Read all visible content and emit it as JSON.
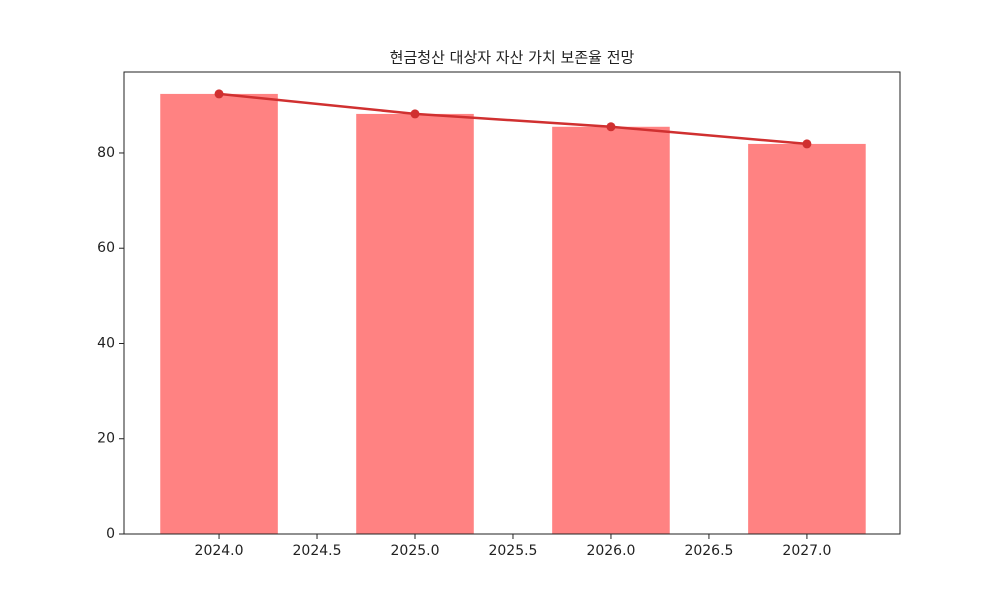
{
  "chart_data": {
    "type": "bar",
    "title": "현금청산 대상자 자산 가치 보존율 전망",
    "x": [
      2024,
      2025,
      2026,
      2027
    ],
    "series": [
      {
        "type": "bar",
        "color": "#ff8282",
        "values": [
          92.4,
          88.2,
          85.5,
          81.9
        ]
      },
      {
        "type": "line",
        "color": "#d03030",
        "values": [
          92.4,
          88.2,
          85.5,
          81.9
        ]
      }
    ],
    "xlim": [
      2023.515,
      2027.475
    ],
    "xticks": [
      {
        "value": 2024,
        "label": "2024.0"
      },
      {
        "value": 2024.5,
        "label": "2024.5"
      },
      {
        "value": 2025,
        "label": "2025.0"
      },
      {
        "value": 2025.5,
        "label": "2025.5"
      },
      {
        "value": 2026,
        "label": "2026.0"
      },
      {
        "value": 2026.5,
        "label": "2026.5"
      },
      {
        "value": 2027,
        "label": "2027.0"
      }
    ],
    "ylim": [
      0,
      97
    ],
    "yticks": [
      0,
      20,
      40,
      60,
      80
    ],
    "grid": false
  }
}
